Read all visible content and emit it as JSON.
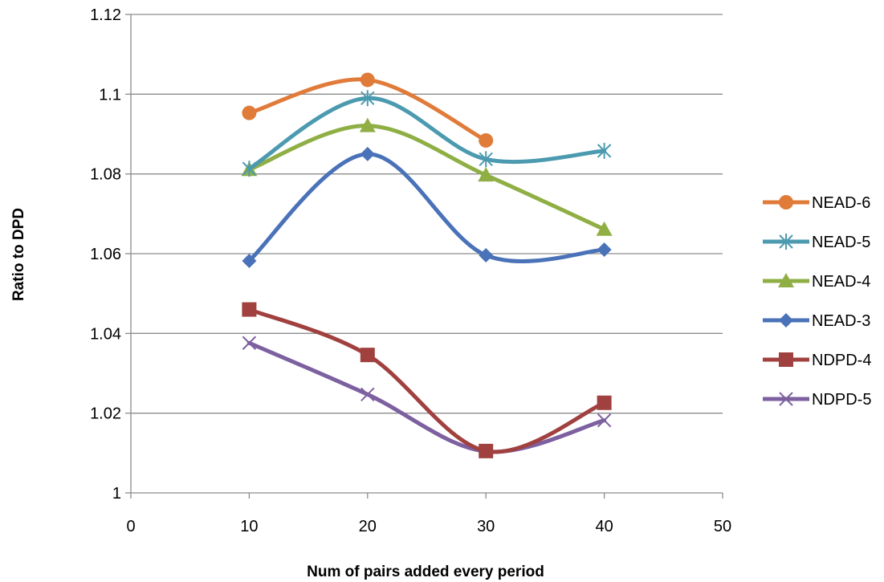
{
  "chart_data": {
    "type": "line",
    "title": "",
    "xlabel": "Num of pairs added every period",
    "ylabel": "Ratio to DPD",
    "xlim": [
      0,
      50
    ],
    "ylim": [
      1,
      1.12
    ],
    "x_ticks": [
      0,
      10,
      20,
      30,
      40,
      50
    ],
    "y_ticks": [
      1,
      1.02,
      1.04,
      1.06,
      1.08,
      1.1,
      1.12
    ],
    "x_tick_labels": [
      "0",
      "10",
      "20",
      "30",
      "40",
      "50"
    ],
    "y_tick_labels": [
      "1",
      "1.02",
      "1.04",
      "1.06",
      "1.08",
      "1.1",
      "1.12"
    ],
    "grid": "horizontal",
    "smooth": true,
    "legend_position": "right",
    "series": [
      {
        "name": "NEAD-6",
        "color": "#E07B39",
        "marker": "circle",
        "x": [
          10,
          20,
          30
        ],
        "values": [
          1.0953,
          1.1036,
          1.0884
        ]
      },
      {
        "name": "NEAD-5",
        "color": "#4B9AAF",
        "marker": "asterisk",
        "x": [
          10,
          20,
          30,
          40
        ],
        "values": [
          1.0813,
          1.099,
          1.0837,
          1.0858
        ]
      },
      {
        "name": "NEAD-4",
        "color": "#8FAF45",
        "marker": "triangle",
        "x": [
          10,
          20,
          30,
          40
        ],
        "values": [
          1.0811,
          1.0921,
          1.0797,
          1.0661
        ]
      },
      {
        "name": "NEAD-3",
        "color": "#4A72B8",
        "marker": "diamond",
        "x": [
          10,
          20,
          30,
          40
        ],
        "values": [
          1.0582,
          1.085,
          1.0596,
          1.061
        ]
      },
      {
        "name": "NDPD-4",
        "color": "#A0413F",
        "marker": "square",
        "x": [
          10,
          20,
          30,
          40
        ],
        "values": [
          1.046,
          1.0346,
          1.0105,
          1.0226
        ]
      },
      {
        "name": "NDPD-5",
        "color": "#7D60A0",
        "marker": "x",
        "x": [
          10,
          20,
          30,
          40
        ],
        "values": [
          1.0376,
          1.0247,
          1.0104,
          1.0182
        ]
      }
    ]
  }
}
